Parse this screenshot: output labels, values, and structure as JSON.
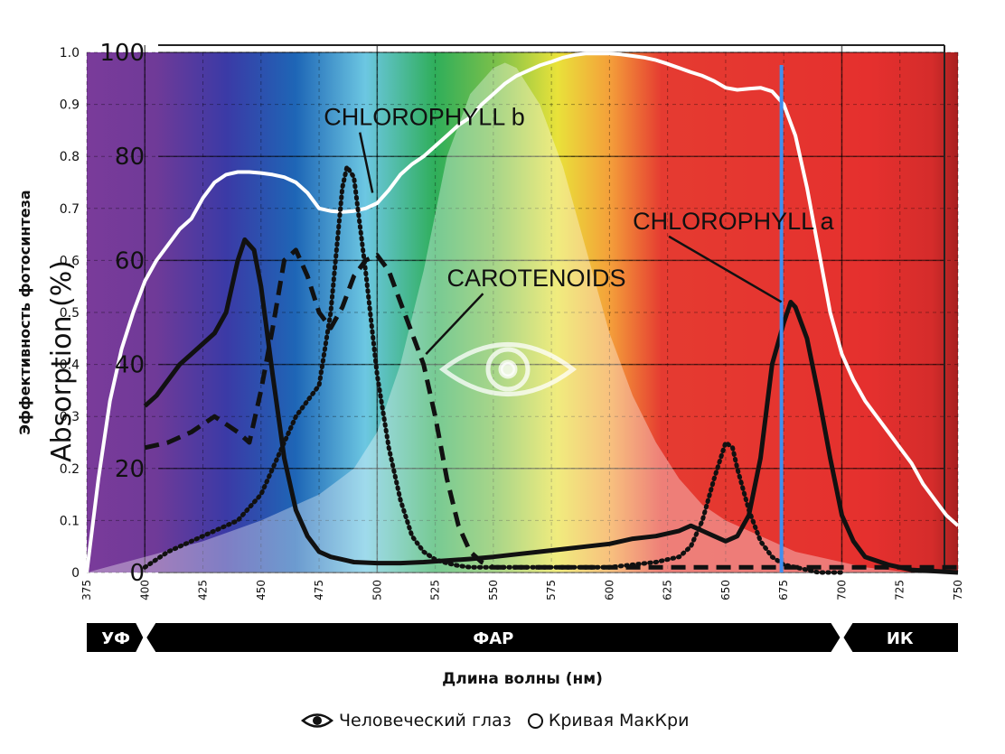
{
  "chart_data": {
    "type": "line",
    "ylabel_left": "Absorption (%)",
    "ylabel_right": "Эффективность фотосинтеза",
    "xlabel": "Длина волны (нм)",
    "xlim": [
      375,
      750
    ],
    "ylim_left": [
      0,
      100
    ],
    "ylim_right": [
      0,
      1.0
    ],
    "x_ticks": [
      "375",
      "400",
      "425",
      "450",
      "475",
      "500",
      "525",
      "550",
      "575",
      "600",
      "625",
      "650",
      "675",
      "700",
      "725",
      "750"
    ],
    "y_ticks_left": [
      "0",
      "20",
      "40",
      "60",
      "80",
      "100"
    ],
    "y_ticks_right": [
      "0",
      "0.1",
      "0.2",
      "0.3",
      "0.4",
      "0.5",
      "0.6",
      "0.7",
      "0.8",
      "0.9",
      "1.0"
    ],
    "annotations": [
      {
        "label": "CHLOROPHYLL b",
        "series": "chlorophyll_b",
        "text_x": 477,
        "text_y": 86,
        "point_x": 498,
        "point_y": 73
      },
      {
        "label": "CHLOROPHYLL a",
        "series": "chlorophyll_a",
        "text_x": 610,
        "text_y": 66,
        "point_x": 674,
        "point_y": 52
      },
      {
        "label": "CAROTENOIDS",
        "series": "carotenoids",
        "text_x": 530,
        "text_y": 55,
        "point_x": 521,
        "point_y": 42
      }
    ],
    "bands": [
      {
        "label": "УФ",
        "from": 375,
        "to": 400
      },
      {
        "label": "ФАР",
        "from": 400,
        "to": 700
      },
      {
        "label": "ИК",
        "from": 700,
        "to": 750
      }
    ],
    "highlight_line_x": 674,
    "series": [
      {
        "key": "mccree",
        "name": "Кривая МакКри",
        "axis": "right",
        "style": "solid-white",
        "x": [
          375,
          380,
          385,
          390,
          395,
          400,
          405,
          410,
          415,
          420,
          425,
          430,
          435,
          440,
          445,
          450,
          455,
          460,
          465,
          470,
          475,
          480,
          485,
          490,
          495,
          500,
          505,
          510,
          515,
          520,
          525,
          530,
          535,
          540,
          545,
          550,
          555,
          560,
          565,
          570,
          575,
          580,
          585,
          590,
          595,
          600,
          605,
          610,
          615,
          620,
          625,
          630,
          635,
          640,
          645,
          650,
          655,
          660,
          665,
          670,
          675,
          680,
          685,
          690,
          695,
          700,
          705,
          710,
          715,
          720,
          725,
          730,
          735,
          740,
          745,
          750
        ],
        "values": [
          0.0,
          0.18,
          0.33,
          0.43,
          0.5,
          0.56,
          0.6,
          0.63,
          0.66,
          0.68,
          0.72,
          0.75,
          0.765,
          0.77,
          0.77,
          0.768,
          0.765,
          0.76,
          0.75,
          0.73,
          0.7,
          0.695,
          0.693,
          0.695,
          0.7,
          0.71,
          0.735,
          0.765,
          0.785,
          0.8,
          0.82,
          0.84,
          0.86,
          0.875,
          0.9,
          0.92,
          0.94,
          0.955,
          0.965,
          0.975,
          0.982,
          0.99,
          0.995,
          0.998,
          0.998,
          0.998,
          0.996,
          0.993,
          0.99,
          0.985,
          0.978,
          0.97,
          0.962,
          0.955,
          0.945,
          0.932,
          0.928,
          0.93,
          0.932,
          0.925,
          0.9,
          0.84,
          0.74,
          0.62,
          0.5,
          0.42,
          0.37,
          0.33,
          0.3,
          0.27,
          0.24,
          0.21,
          0.17,
          0.14,
          0.11,
          0.09
        ]
      },
      {
        "key": "human_eye",
        "name": "Человеческий глаз",
        "axis": "right",
        "style": "fill-white",
        "x": [
          375,
          400,
          425,
          450,
          475,
          490,
          500,
          510,
          520,
          530,
          540,
          550,
          555,
          560,
          570,
          580,
          590,
          600,
          610,
          620,
          630,
          640,
          650,
          660,
          670,
          680,
          690,
          700,
          710,
          720,
          730,
          740,
          750
        ],
        "values": [
          0,
          0.03,
          0.06,
          0.1,
          0.15,
          0.2,
          0.27,
          0.4,
          0.58,
          0.8,
          0.92,
          0.97,
          0.98,
          0.97,
          0.9,
          0.78,
          0.62,
          0.46,
          0.34,
          0.25,
          0.18,
          0.13,
          0.1,
          0.08,
          0.06,
          0.04,
          0.03,
          0.02,
          0.01,
          0.005,
          0,
          0,
          0
        ]
      },
      {
        "key": "chlorophyll_a",
        "name": "CHLOROPHYLL a",
        "axis": "left",
        "style": "solid-black",
        "x": [
          400,
          405,
          410,
          415,
          420,
          425,
          430,
          435,
          440,
          443,
          447,
          450,
          455,
          460,
          465,
          470,
          475,
          480,
          485,
          490,
          500,
          510,
          520,
          530,
          540,
          550,
          560,
          570,
          580,
          590,
          600,
          610,
          620,
          630,
          635,
          640,
          645,
          650,
          655,
          660,
          665,
          670,
          675,
          678,
          680,
          685,
          690,
          695,
          700,
          705,
          710,
          720,
          730,
          750
        ],
        "values": [
          32,
          34,
          37,
          40,
          42,
          44,
          46,
          50,
          60,
          64,
          62,
          55,
          38,
          22,
          12,
          7,
          4,
          3,
          2.5,
          2,
          1.8,
          1.8,
          2,
          2.3,
          2.6,
          3,
          3.5,
          4,
          4.5,
          5,
          5.5,
          6.5,
          7,
          8,
          9,
          8,
          7,
          6,
          7,
          11,
          22,
          40,
          48,
          52,
          51,
          45,
          34,
          22,
          11,
          6,
          3,
          1.5,
          0.5,
          0
        ]
      },
      {
        "key": "chlorophyll_b",
        "name": "CHLOROPHYLL b",
        "axis": "left",
        "style": "dotted-black",
        "x": [
          400,
          410,
          420,
          430,
          440,
          450,
          455,
          460,
          465,
          470,
          475,
          480,
          485,
          487,
          490,
          495,
          500,
          505,
          510,
          515,
          520,
          525,
          530,
          535,
          540,
          550,
          560,
          570,
          580,
          590,
          600,
          610,
          620,
          630,
          635,
          640,
          645,
          650,
          653,
          655,
          660,
          665,
          670,
          675,
          680,
          690,
          700
        ],
        "values": [
          1,
          4,
          6,
          8,
          10,
          15,
          20,
          25,
          30,
          33,
          36,
          50,
          74,
          78,
          76,
          58,
          38,
          24,
          14,
          7,
          4,
          2.5,
          1.8,
          1.3,
          1,
          1,
          1,
          1,
          1,
          1,
          1,
          1.5,
          2,
          3,
          5,
          10,
          18,
          25,
          24,
          20,
          12,
          6,
          3,
          1.5,
          1,
          0,
          0
        ]
      },
      {
        "key": "carotenoids",
        "name": "CAROTENOIDS",
        "axis": "left",
        "style": "dashed-black",
        "x": [
          400,
          410,
          420,
          430,
          440,
          445,
          450,
          455,
          460,
          465,
          470,
          475,
          480,
          485,
          490,
          495,
          500,
          505,
          510,
          515,
          520,
          525,
          530,
          535,
          540,
          545,
          550,
          560,
          580,
          600,
          650,
          700,
          750
        ],
        "values": [
          24,
          25,
          27,
          30,
          27,
          25,
          35,
          47,
          60,
          62,
          57,
          50,
          47,
          51,
          57,
          60,
          61,
          58,
          52,
          46,
          40,
          30,
          18,
          9,
          4,
          2,
          1,
          1,
          1,
          1,
          1,
          1,
          1
        ]
      }
    ]
  },
  "legend": {
    "eye_icon": "eye-icon",
    "eye_label": "Человеческий глаз",
    "circle_icon": "circle-icon",
    "mccree_label": "Кривая МакКри"
  }
}
